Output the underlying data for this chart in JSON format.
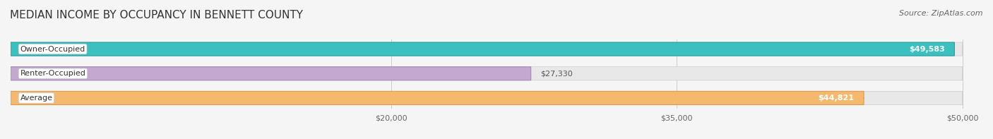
{
  "title": "MEDIAN INCOME BY OCCUPANCY IN BENNETT COUNTY",
  "source": "Source: ZipAtlas.com",
  "categories": [
    "Owner-Occupied",
    "Renter-Occupied",
    "Average"
  ],
  "values": [
    49583,
    27330,
    44821
  ],
  "bar_colors": [
    "#3bbfbf",
    "#c4a8d0",
    "#f5b96e"
  ],
  "bar_edge_colors": [
    "#2aa0a0",
    "#a888b8",
    "#e09a50"
  ],
  "value_labels": [
    "$49,583",
    "$27,330",
    "$44,821"
  ],
  "xmin": 0,
  "xmax": 50000,
  "xticks": [
    20000,
    35000,
    50000
  ],
  "xtick_labels": [
    "$20,000",
    "$35,000",
    "$50,000"
  ],
  "background_color": "#f5f5f5",
  "bar_background_color": "#e8e8e8",
  "title_fontsize": 11,
  "source_fontsize": 8,
  "label_fontsize": 8,
  "value_fontsize": 8
}
